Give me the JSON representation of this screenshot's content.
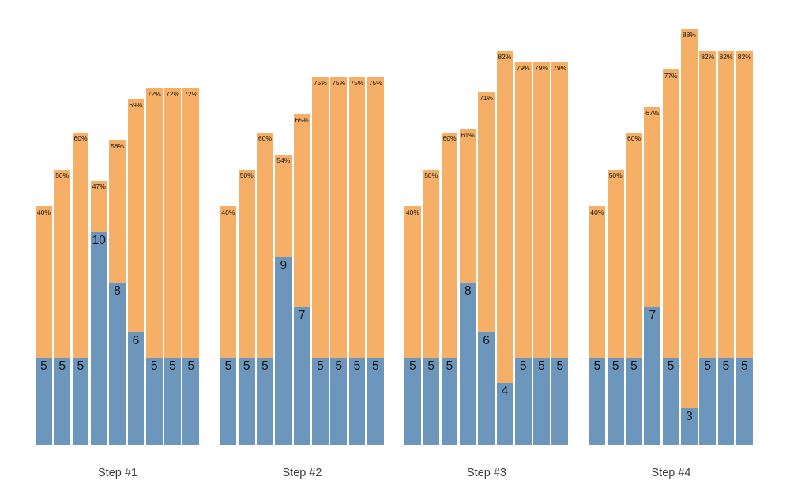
{
  "chart_data": {
    "type": "bar",
    "variant": "grouped-stacked-columns",
    "title": "",
    "xlabel": "",
    "ylabel": "",
    "axes_visible": false,
    "grid": false,
    "legend": false,
    "background_color": "#FFFFFF",
    "series": [
      {
        "name": "blue-bottom-segment",
        "color": "#6D96BD"
      },
      {
        "name": "orange-top-segment",
        "color": "#F6AF67"
      }
    ],
    "label_text_color": "#141414",
    "group_label_color": "#3D3D3D",
    "bars_per_group": 9,
    "groups": [
      {
        "label": "Step #1",
        "blue_values": [
          5,
          5,
          5,
          10,
          8,
          6,
          5,
          5,
          5
        ],
        "percents": [
          40,
          50,
          60,
          47,
          58,
          69,
          72,
          72,
          72
        ],
        "percent_labels": [
          "40%",
          "50%",
          "60%",
          "47%",
          "58%",
          "69%",
          "72%",
          "72%",
          "72%"
        ]
      },
      {
        "label": "Step #2",
        "blue_values": [
          5,
          5,
          5,
          9,
          7,
          5,
          5,
          5,
          5
        ],
        "percents": [
          40,
          50,
          60,
          54,
          65,
          75,
          75,
          75,
          75
        ],
        "percent_labels": [
          "40%",
          "50%",
          "60%",
          "54%",
          "65%",
          "75%",
          "75%",
          "75%",
          "75%"
        ]
      },
      {
        "label": "Step #3",
        "blue_values": [
          5,
          5,
          5,
          8,
          6,
          4,
          5,
          5,
          5
        ],
        "percents": [
          40,
          50,
          60,
          61,
          71,
          82,
          79,
          79,
          79
        ],
        "percent_labels": [
          "40%",
          "50%",
          "60%",
          "61%",
          "71%",
          "82%",
          "79%",
          "79%",
          "79%"
        ]
      },
      {
        "label": "Step #4",
        "blue_values": [
          5,
          5,
          5,
          7,
          5,
          3,
          5,
          5,
          5
        ],
        "percents": [
          40,
          50,
          60,
          67,
          77,
          88,
          82,
          82,
          82
        ],
        "percent_labels": [
          "40%",
          "50%",
          "60%",
          "67%",
          "77%",
          "88%",
          "82%",
          "82%",
          "82%"
        ]
      }
    ]
  }
}
